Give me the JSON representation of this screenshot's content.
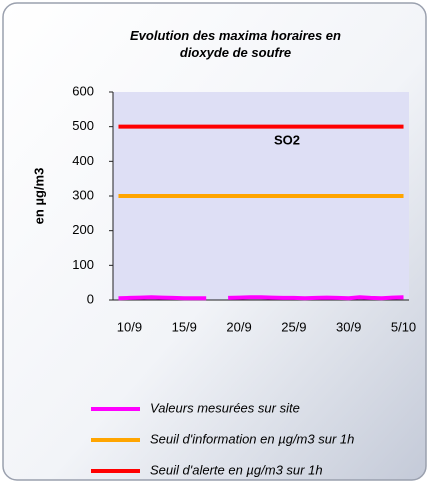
{
  "chart_data": {
    "type": "line",
    "title": "Evolution des maxima horaires en dioxyde de soufre",
    "y_label": "en µg/m3",
    "annotation": "SO2",
    "categories": [
      null,
      "10/9",
      null,
      null,
      null,
      null,
      "15/9",
      null,
      null,
      null,
      null,
      "20/9",
      null,
      null,
      null,
      null,
      "25/9",
      null,
      null,
      null,
      null,
      "30/9",
      null,
      null,
      null,
      null,
      "5/10"
    ],
    "series": [
      {
        "name": "Valeurs mesurées sur site",
        "color": "#ff00ff",
        "values": [
          5,
          6,
          7,
          8,
          7,
          6,
          5,
          5,
          5,
          null,
          6,
          7,
          8,
          8,
          7,
          6,
          6,
          5,
          6,
          7,
          6,
          5,
          8,
          6,
          5,
          7,
          8
        ]
      },
      {
        "name": "Seuil d'information en µg/m3 sur 1h",
        "color": "#ffa500",
        "values": [
          300,
          300,
          300,
          300,
          300,
          300,
          300,
          300,
          300,
          300,
          300,
          300,
          300,
          300,
          300,
          300,
          300,
          300,
          300,
          300,
          300,
          300,
          300,
          300,
          300,
          300,
          300
        ]
      },
      {
        "name": "Seuil d'alerte en µg/m3 sur 1h",
        "color": "#ff0000",
        "values": [
          500,
          500,
          500,
          500,
          500,
          500,
          500,
          500,
          500,
          500,
          500,
          500,
          500,
          500,
          500,
          500,
          500,
          500,
          500,
          500,
          500,
          500,
          500,
          500,
          500,
          500,
          500
        ]
      }
    ],
    "ylim": [
      0,
      600
    ],
    "yticks": [
      0,
      100,
      200,
      300,
      400,
      500,
      600
    ],
    "grid": false,
    "legend": "bottom"
  }
}
